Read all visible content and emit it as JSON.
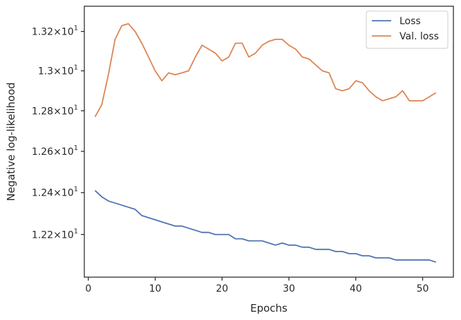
{
  "chart_data": {
    "type": "line",
    "xlabel": "Epochs",
    "ylabel": "Negative log-likelihood",
    "xlim": [
      -0.6,
      54.6
    ],
    "ylim": [
      12.0,
      13.33
    ],
    "y_scale": "log",
    "grid": false,
    "legend_position": "top-right",
    "x_ticks": [
      0,
      10,
      20,
      30,
      40,
      50
    ],
    "y_ticks": [
      {
        "value": 12.2,
        "mantissa": "1.22"
      },
      {
        "value": 12.4,
        "mantissa": "1.24"
      },
      {
        "value": 12.6,
        "mantissa": "1.26"
      },
      {
        "value": 12.8,
        "mantissa": "1.28"
      },
      {
        "value": 13.0,
        "mantissa": "1.3"
      },
      {
        "value": 13.2,
        "mantissa": "1.32"
      }
    ],
    "y_tick_suffix": "×10",
    "y_tick_exponent": "1",
    "x": [
      1,
      2,
      3,
      4,
      5,
      6,
      7,
      8,
      9,
      10,
      11,
      12,
      13,
      14,
      15,
      16,
      17,
      18,
      19,
      20,
      21,
      22,
      23,
      24,
      25,
      26,
      27,
      28,
      29,
      30,
      31,
      32,
      33,
      34,
      35,
      36,
      37,
      38,
      39,
      40,
      41,
      42,
      43,
      44,
      45,
      46,
      47,
      48,
      49,
      50,
      51,
      52
    ],
    "series": [
      {
        "name": "Loss",
        "color": "#4c72b0",
        "values": [
          12.41,
          12.38,
          12.36,
          12.35,
          12.34,
          12.33,
          12.32,
          12.29,
          12.28,
          12.27,
          12.26,
          12.25,
          12.24,
          12.24,
          12.23,
          12.22,
          12.21,
          12.21,
          12.2,
          12.2,
          12.2,
          12.18,
          12.18,
          12.17,
          12.17,
          12.17,
          12.16,
          12.15,
          12.16,
          12.15,
          12.15,
          12.14,
          12.14,
          12.13,
          12.13,
          12.13,
          12.12,
          12.12,
          12.11,
          12.11,
          12.1,
          12.1,
          12.09,
          12.09,
          12.09,
          12.08,
          12.08,
          12.08,
          12.08,
          12.08,
          12.08,
          12.07
        ]
      },
      {
        "name": "Val. loss",
        "color": "#dd8452",
        "values": [
          12.77,
          12.83,
          12.98,
          13.16,
          13.23,
          13.24,
          13.2,
          13.14,
          13.07,
          13.0,
          12.95,
          12.99,
          12.98,
          12.99,
          13.0,
          13.07,
          13.13,
          13.11,
          13.09,
          13.05,
          13.07,
          13.14,
          13.14,
          13.07,
          13.09,
          13.13,
          13.15,
          13.16,
          13.16,
          13.13,
          13.11,
          13.07,
          13.06,
          13.03,
          13.0,
          12.99,
          12.91,
          12.9,
          12.91,
          12.95,
          12.94,
          12.9,
          12.87,
          12.85,
          12.86,
          12.87,
          12.9,
          12.85,
          12.85,
          12.85,
          12.87,
          12.89
        ]
      }
    ]
  }
}
